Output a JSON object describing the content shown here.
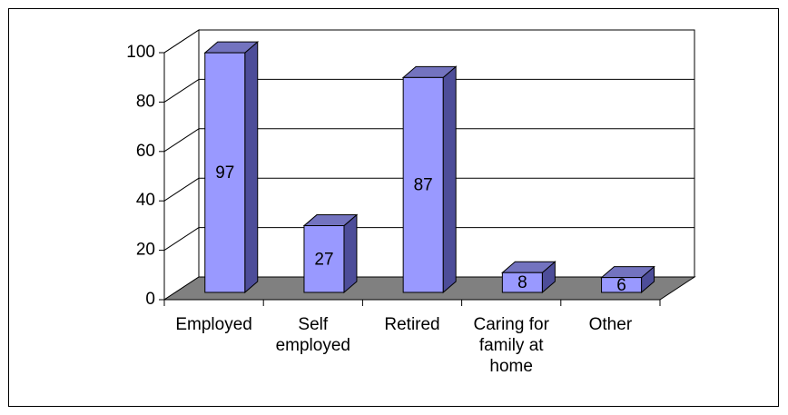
{
  "chart_data": {
    "type": "bar3d",
    "categories": [
      "Employed",
      "Self employed",
      "Retired",
      "Caring for family at home",
      "Other"
    ],
    "values": [
      97,
      27,
      87,
      8,
      6
    ],
    "color": "#9999ff",
    "ylim": [
      0,
      100
    ],
    "yticks": [
      0,
      20,
      40,
      60,
      80,
      100
    ],
    "grid": true
  }
}
